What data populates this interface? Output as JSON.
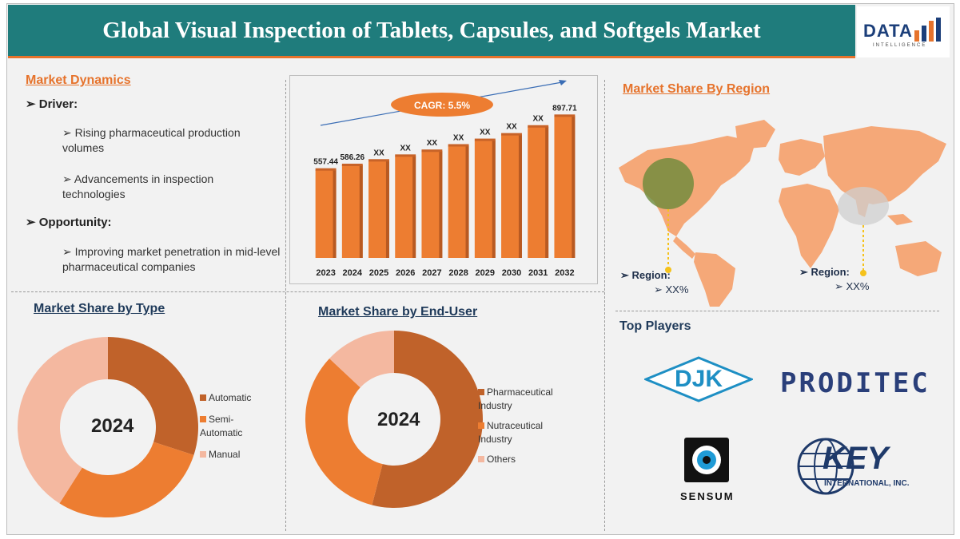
{
  "header": {
    "title": "Global Visual Inspection of Tablets, Capsules, and Softgels Market",
    "logo_word": "DATA",
    "logo_sub": "INTELLIGENCE"
  },
  "dynamics": {
    "title": "Market Dynamics",
    "driver_label": "➢ Driver:",
    "drivers": [
      "➢ Rising pharmaceutical production volumes",
      "➢ Advancements in inspection technologies"
    ],
    "opportunity_label": "➢ Opportunity:",
    "opportunities": [
      "➢ Improving market penetration in mid-level pharmaceutical companies"
    ]
  },
  "region": {
    "title": "Market Share By Region",
    "left_label": "➢ Region:",
    "left_value": "➢ XX%",
    "right_label": "➢ Region:",
    "right_value": "➢ XX%"
  },
  "type_share": {
    "title": "Market Share by Type",
    "year": "2024"
  },
  "enduser_share": {
    "title": "Market Share by End-User",
    "year": "2024"
  },
  "players": {
    "title": "Top Players",
    "names": [
      "DJK",
      "PRODITEC",
      "SENSUM",
      "KEY",
      "INTERNATIONAL, INC."
    ]
  },
  "colors": {
    "teal_header": "#1f7c7c",
    "accent_orange": "#e6732c",
    "dark_orange": "#c0622a",
    "light_orange": "#f2b396",
    "navy": "#1f3a5a"
  },
  "chart_data": [
    {
      "type": "bar",
      "categories": [
        "2023",
        "2024",
        "2025",
        "2026",
        "2027",
        "2028",
        "2029",
        "2030",
        "2031",
        "2032"
      ],
      "values": [
        557.44,
        586.26,
        615,
        645,
        676,
        710,
        745,
        780,
        830,
        897.71
      ],
      "data_labels": [
        "557.44",
        "586.26",
        "XX",
        "XX",
        "XX",
        "XX",
        "XX",
        "XX",
        "XX",
        "897.71"
      ],
      "annotation": "CAGR: 5.5%",
      "ylim": [
        0,
        950
      ]
    },
    {
      "type": "pie",
      "title": "Market Share by Type",
      "labels": [
        "Automatic",
        "Semi-Automatic",
        "Manual"
      ],
      "values": [
        30,
        29,
        41
      ],
      "colors": [
        "#c0622a",
        "#ed7d31",
        "#f4b8a0"
      ]
    },
    {
      "type": "pie",
      "title": "Market Share by End-User",
      "labels": [
        "Pharmaceutical Industry",
        "Nutraceutical Industry",
        "Others"
      ],
      "values": [
        54,
        33,
        13
      ],
      "colors": [
        "#c0622a",
        "#ed7d31",
        "#f4b8a0"
      ]
    }
  ]
}
